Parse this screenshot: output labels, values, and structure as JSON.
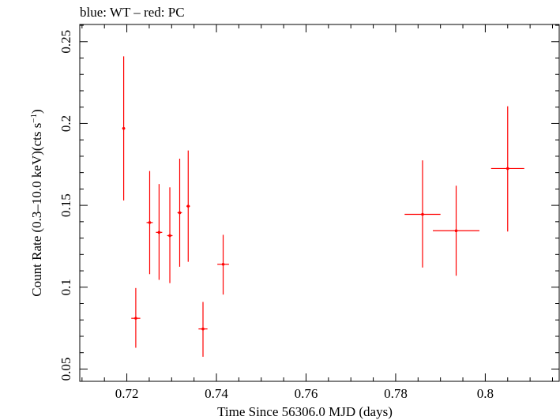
{
  "chart_data": {
    "type": "scatter",
    "title": "blue: WT – red: PC",
    "xlabel": "Time Since 56306.0 MJD (days)",
    "ylabel_main": "Count Rate (0.3–10.0 keV)(cts s",
    "ylabel_sup": "−1",
    "ylabel_end": ")",
    "xlim": [
      0.7095,
      0.8165
    ],
    "ylim": [
      0.0425,
      0.2605
    ],
    "x_ticks": [
      0.72,
      0.74,
      0.76,
      0.78,
      0.8
    ],
    "x_tick_labels": [
      "0.72",
      "0.74",
      "0.76",
      "0.78",
      "0.8"
    ],
    "y_ticks": [
      0.05,
      0.1,
      0.15,
      0.2,
      0.25
    ],
    "y_tick_labels": [
      "0.05",
      "0.1",
      "0.15",
      "0.2",
      "0.25"
    ],
    "grid": false,
    "series": [
      {
        "color": "#ff0000",
        "points": [
          {
            "x": 0.7193,
            "xerr": 0.0003,
            "y": 0.197,
            "yerr_lo": 0.044,
            "yerr_hi": 0.044
          },
          {
            "x": 0.722,
            "xerr": 0.001,
            "y": 0.081,
            "yerr_lo": 0.018,
            "yerr_hi": 0.0185
          },
          {
            "x": 0.7251,
            "xerr": 0.0007,
            "y": 0.1395,
            "yerr_lo": 0.0315,
            "yerr_hi": 0.0315
          },
          {
            "x": 0.7272,
            "xerr": 0.0007,
            "y": 0.1335,
            "yerr_lo": 0.029,
            "yerr_hi": 0.0295
          },
          {
            "x": 0.7296,
            "xerr": 0.0006,
            "y": 0.1315,
            "yerr_lo": 0.029,
            "yerr_hi": 0.0295
          },
          {
            "x": 0.7318,
            "xerr": 0.0005,
            "y": 0.1455,
            "yerr_lo": 0.033,
            "yerr_hi": 0.033
          },
          {
            "x": 0.7337,
            "xerr": 0.0004,
            "y": 0.1495,
            "yerr_lo": 0.034,
            "yerr_hi": 0.034
          },
          {
            "x": 0.737,
            "xerr": 0.001,
            "y": 0.0745,
            "yerr_lo": 0.017,
            "yerr_hi": 0.0165
          },
          {
            "x": 0.7415,
            "xerr": 0.0013,
            "y": 0.114,
            "yerr_lo": 0.0185,
            "yerr_hi": 0.018
          },
          {
            "x": 0.786,
            "xerr": 0.004,
            "y": 0.1445,
            "yerr_lo": 0.0325,
            "yerr_hi": 0.033
          },
          {
            "x": 0.7935,
            "xerr": 0.0052,
            "y": 0.1345,
            "yerr_lo": 0.0275,
            "yerr_hi": 0.0275
          },
          {
            "x": 0.805,
            "xerr": 0.0037,
            "y": 0.1725,
            "yerr_lo": 0.0385,
            "yerr_hi": 0.038
          }
        ]
      }
    ]
  }
}
